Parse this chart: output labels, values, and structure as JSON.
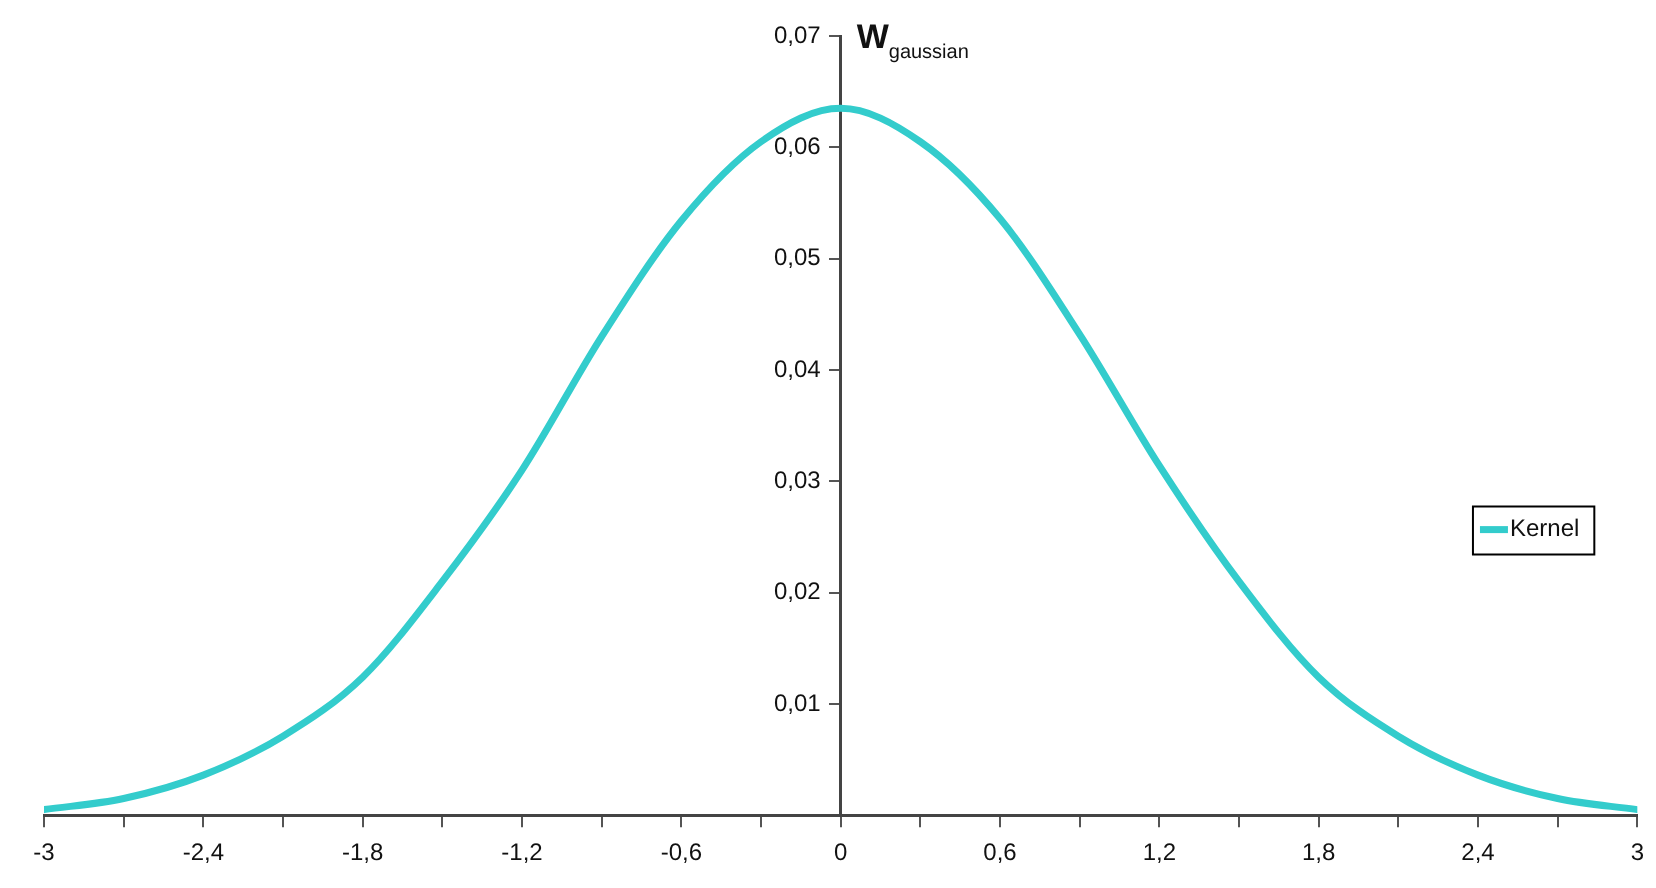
{
  "chart_data": {
    "type": "line",
    "ylabel": "W$_{gaussian}$",
    "x": [
      -3,
      -2.7,
      -2.4,
      -2.1,
      -1.8,
      -1.5,
      -1.2,
      -0.9,
      -0.6,
      -0.3,
      0,
      0.3,
      0.6,
      0.9,
      1.2,
      1.5,
      1.8,
      2.1,
      2.4,
      2.7,
      3
    ],
    "series": [
      {
        "name": "Kernel",
        "color": "#33cccc",
        "values": [
          0.0005,
          0.0015,
          0.0036,
          0.0071,
          0.0124,
          0.021,
          0.031,
          0.043,
          0.0534,
          0.0605,
          0.0635,
          0.0605,
          0.0536,
          0.0432,
          0.0314,
          0.021,
          0.0124,
          0.0071,
          0.0036,
          0.0015,
          0.0005
        ]
      }
    ],
    "xlim": [
      -3,
      3
    ],
    "xticks": [
      -3,
      {
        "value": -2.7,
        "label": null
      },
      {
        "value": -2.4,
        "label": "-2,4"
      },
      {
        "value": -2.1,
        "label": null
      },
      {
        "value": -1.8,
        "label": "-1,8"
      },
      {
        "value": -1.5,
        "label": null
      },
      {
        "value": -1.2,
        "label": "-1,2"
      },
      {
        "value": -0.9,
        "label": null
      },
      {
        "value": -0.6,
        "label": "-0,6"
      },
      {
        "value": -0.3,
        "label": null
      },
      0,
      {
        "value": 0.3,
        "label": null
      },
      {
        "value": 0.6,
        "label": "0,6"
      },
      {
        "value": 0.9,
        "label": null
      },
      {
        "value": 1.2,
        "label": "1,2"
      },
      {
        "value": 1.5,
        "label": null
      },
      {
        "value": 1.8,
        "label": "1,8"
      },
      {
        "value": 2.1,
        "label": null
      },
      {
        "value": 2.4,
        "label": "2,4"
      },
      {
        "value": 2.7,
        "label": null
      },
      3
    ],
    "ylim": [
      0,
      0.07
    ],
    "yticks": [
      {
        "value": 0,
        "label": null
      },
      {
        "value": 0.01,
        "label": "0,01"
      },
      {
        "value": 0.02,
        "label": "0,02"
      },
      {
        "value": 0.03,
        "label": "0,03"
      },
      {
        "value": 0.04,
        "label": "0,04"
      },
      {
        "value": 0.05,
        "label": "0,05"
      },
      {
        "value": 0.06,
        "label": "0,06"
      },
      {
        "value": 0.07,
        "label": "0,07"
      }
    ],
    "grid": false,
    "legend": "right",
    "marker": "none",
    "line_style": "solid"
  }
}
